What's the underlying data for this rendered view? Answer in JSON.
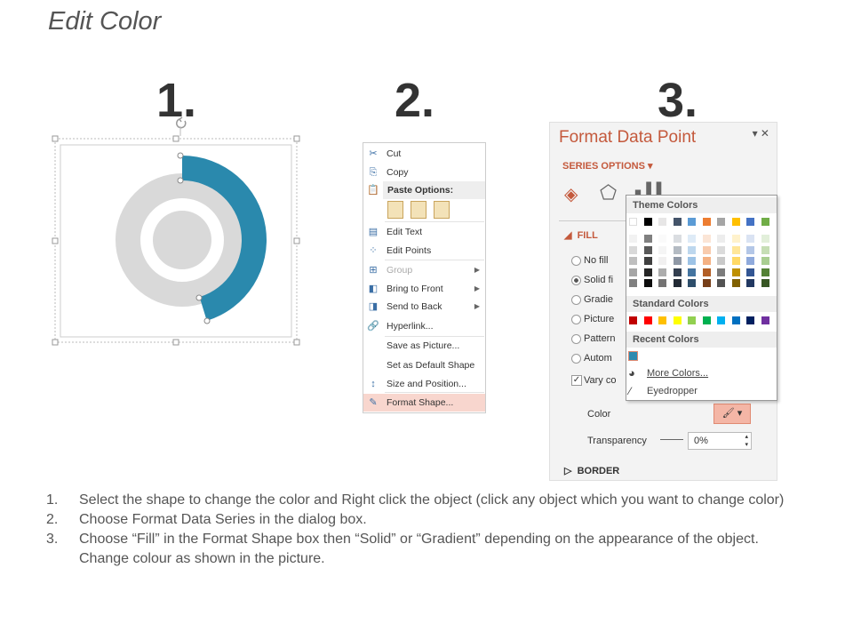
{
  "title": "Edit Color",
  "step_numbers": [
    "1.",
    "2.",
    "3."
  ],
  "context_menu": {
    "items": [
      {
        "label": "Cut",
        "icon": "scissors-icon"
      },
      {
        "label": "Copy",
        "icon": "copy-icon"
      },
      {
        "label": "Paste Options:",
        "icon": "paste-icon"
      },
      {
        "label": "Edit Text",
        "icon": "edit-text-icon"
      },
      {
        "label": "Edit Points",
        "icon": "edit-points-icon"
      },
      {
        "label": "Group",
        "icon": "group-icon",
        "disabled": true,
        "submenu": true
      },
      {
        "label": "Bring to Front",
        "icon": "bring-front-icon",
        "submenu": true
      },
      {
        "label": "Send to Back",
        "icon": "send-back-icon",
        "submenu": true
      },
      {
        "label": "Hyperlink...",
        "icon": "hyperlink-icon"
      },
      {
        "label": "Save as Picture..."
      },
      {
        "label": "Set as Default Shape"
      },
      {
        "label": "Size and Position...",
        "icon": "size-icon"
      },
      {
        "label": "Format Shape...",
        "icon": "format-shape-icon",
        "highlighted": true
      }
    ]
  },
  "panel": {
    "title": "Format Data Point",
    "series_options": "SERIES OPTIONS",
    "fill_header": "FILL",
    "fill_options": [
      "No fill",
      "Solid fi",
      "Gradie",
      "Picture",
      "Pattern",
      "Autom"
    ],
    "selected_fill": 1,
    "vary_colors": "Vary co",
    "color_label": "Color",
    "transparency_label": "Transparency",
    "transparency_value": "0%",
    "border_header": "BORDER",
    "accent": "#c4593c"
  },
  "color_dropdown": {
    "theme_label": "Theme Colors",
    "theme_colors": [
      "#ffffff",
      "#000000",
      "#e7e6e6",
      "#44546a",
      "#5b9bd5",
      "#ed7d31",
      "#a5a5a5",
      "#ffc000",
      "#4472c4",
      "#70ad47"
    ],
    "standard_label": "Standard Colors",
    "standard_colors": [
      "#c00000",
      "#ff0000",
      "#ffc000",
      "#ffff00",
      "#92d050",
      "#00b050",
      "#00b0f0",
      "#0070c0",
      "#002060",
      "#7030a0"
    ],
    "recent_label": "Recent Colors",
    "recent_colors": [
      "#2e8bb0"
    ],
    "more_colors": "More Colors...",
    "eyedropper": "Eyedropper"
  },
  "donut": {
    "highlight_color": "#2a89ad",
    "base_color": "#d9d9d9"
  },
  "steps": [
    {
      "n": "1.",
      "text": "Select the shape to change the color and Right click the object (click any object which you want to change color)"
    },
    {
      "n": "2.",
      "text": "Choose Format Data Series in the dialog box."
    },
    {
      "n": "3.",
      "text": "Choose “Fill” in the Format Shape box then “Solid” or “Gradient” depending on the appearance of the object. Change colour as shown in the picture."
    }
  ]
}
